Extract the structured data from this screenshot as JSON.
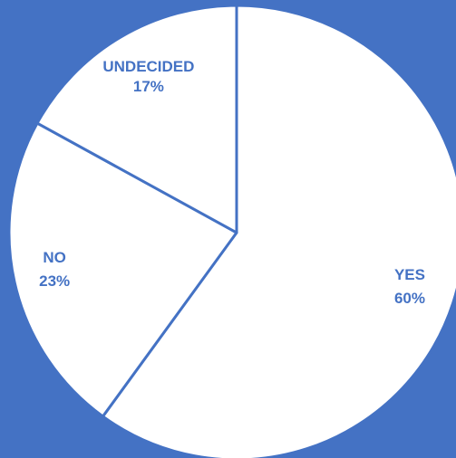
{
  "chart_data": {
    "type": "pie",
    "slices": [
      {
        "category": "YES",
        "value": 60,
        "label": "60%"
      },
      {
        "category": "NO",
        "value": 23,
        "label": "23%"
      },
      {
        "category": "UNDECIDED",
        "value": 17,
        "label": "17%"
      }
    ],
    "start_angle_deg": 0,
    "direction": "clockwise",
    "legend": "none",
    "labels": "inside"
  },
  "colors": {
    "background": "#4472C4",
    "slice_fill": "#FFFFFF",
    "slice_border": "#4472C4",
    "label_text": "#4472C4"
  }
}
